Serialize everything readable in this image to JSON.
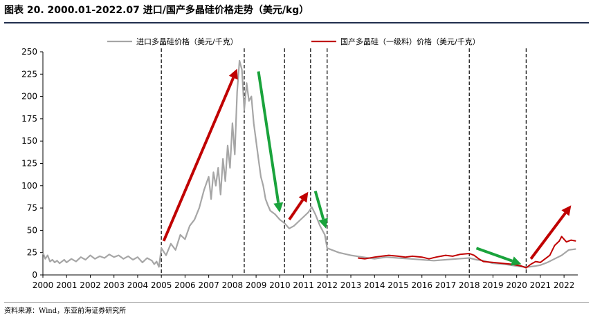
{
  "header": {
    "title": "图表 20. 2000.01-2022.07 进口/国产多晶硅价格走势（美元/kg）"
  },
  "footer": {
    "source": "资料来源：Wind，东亚前海证券研究所"
  },
  "colors": {
    "imported": "#a6a6a6",
    "domestic": "#c00000",
    "arrow_up": "#c00000",
    "arrow_down": "#1aa33c",
    "title_rule": "#1f2d4d"
  },
  "chart_data": {
    "type": "line",
    "title": "",
    "xlabel": "",
    "ylabel": "",
    "xlim": [
      2000.0,
      2022.58
    ],
    "ylim": [
      0,
      250
    ],
    "yticks": [
      0,
      25,
      50,
      75,
      100,
      125,
      150,
      175,
      200,
      225,
      250
    ],
    "xtick_labels": [
      "2000",
      "2001",
      "2002",
      "2003",
      "2004",
      "2005",
      "2006",
      "2007",
      "2008",
      "2009",
      "2010",
      "2011",
      "2012",
      "2013",
      "2014",
      "2015",
      "2016",
      "2017",
      "2018",
      "2019",
      "2020",
      "2021",
      "2022"
    ],
    "grid": false,
    "legend_placement": "top",
    "series": [
      {
        "name": "进口多晶硅价格（美元/千克）",
        "color": "#a6a6a6",
        "x": [
          2000.0,
          2000.1,
          2000.2,
          2000.3,
          2000.4,
          2000.5,
          2000.6,
          2000.7,
          2000.8,
          2000.9,
          2001.0,
          2001.2,
          2001.4,
          2001.6,
          2001.8,
          2002.0,
          2002.2,
          2002.4,
          2002.6,
          2002.8,
          2003.0,
          2003.2,
          2003.4,
          2003.6,
          2003.8,
          2004.0,
          2004.2,
          2004.4,
          2004.6,
          2004.7,
          2004.8,
          2004.9,
          2005.0,
          2005.2,
          2005.4,
          2005.6,
          2005.8,
          2006.0,
          2006.2,
          2006.4,
          2006.6,
          2006.8,
          2007.0,
          2007.1,
          2007.2,
          2007.3,
          2007.4,
          2007.5,
          2007.6,
          2007.7,
          2007.8,
          2007.9,
          2008.0,
          2008.1,
          2008.2,
          2008.3,
          2008.4,
          2008.5,
          2008.6,
          2008.7,
          2008.8,
          2008.9,
          2009.0,
          2009.1,
          2009.2,
          2009.3,
          2009.4,
          2009.5,
          2009.6,
          2009.8,
          2010.0,
          2010.2,
          2010.4,
          2010.6,
          2010.8,
          2011.0,
          2011.2,
          2011.35,
          2011.5,
          2011.7,
          2011.9,
          2012.0,
          2012.2,
          2012.5,
          2013.0,
          2013.5,
          2014.0,
          2014.5,
          2015.0,
          2015.5,
          2016.0,
          2016.5,
          2017.0,
          2017.5,
          2018.0,
          2018.3,
          2018.6,
          2019.0,
          2019.5,
          2020.0,
          2020.3,
          2020.5,
          2020.8,
          2021.0,
          2021.3,
          2021.6,
          2021.9,
          2022.2,
          2022.5
        ],
        "y": [
          25,
          18,
          22,
          15,
          17,
          14,
          16,
          13,
          15,
          17,
          14,
          18,
          15,
          20,
          17,
          22,
          18,
          21,
          19,
          23,
          20,
          22,
          18,
          21,
          17,
          20,
          14,
          19,
          16,
          12,
          15,
          9,
          30,
          22,
          35,
          28,
          45,
          40,
          55,
          62,
          75,
          95,
          110,
          85,
          115,
          100,
          120,
          90,
          130,
          105,
          145,
          120,
          170,
          135,
          205,
          240,
          230,
          185,
          215,
          195,
          200,
          170,
          150,
          130,
          110,
          100,
          85,
          78,
          72,
          68,
          62,
          58,
          52,
          55,
          60,
          65,
          70,
          76,
          68,
          55,
          45,
          30,
          28,
          25,
          22,
          20,
          18,
          20,
          19,
          18,
          17,
          16,
          17,
          18,
          19,
          17,
          16,
          13,
          12,
          10,
          9,
          9,
          10,
          11,
          14,
          18,
          22,
          28,
          29
        ]
      },
      {
        "name": "国产多晶硅（一级料）价格（美元/千克）",
        "color": "#c00000",
        "x": [
          2013.3,
          2013.6,
          2014.0,
          2014.3,
          2014.6,
          2015.0,
          2015.3,
          2015.6,
          2016.0,
          2016.3,
          2016.6,
          2017.0,
          2017.3,
          2017.6,
          2018.0,
          2018.2,
          2018.4,
          2018.6,
          2019.0,
          2019.4,
          2019.8,
          2020.2,
          2020.4,
          2020.6,
          2020.8,
          2021.0,
          2021.2,
          2021.4,
          2021.6,
          2021.8,
          2021.9,
          2022.0,
          2022.1,
          2022.3,
          2022.5
        ],
        "y": [
          19,
          18,
          20,
          21,
          22,
          21,
          20,
          21,
          20,
          18,
          20,
          22,
          21,
          23,
          24,
          22,
          18,
          15,
          14,
          13,
          12,
          10,
          8,
          12,
          15,
          14,
          18,
          22,
          33,
          38,
          43,
          40,
          37,
          39,
          38
        ]
      }
    ],
    "annotations": {
      "vertical_dashed_lines_at_x": [
        2005.0,
        2008.5,
        2010.2,
        2011.3,
        2012.0,
        2018.0,
        2020.4
      ],
      "arrows": [
        {
          "direction": "up",
          "color": "#c00000",
          "from": [
            2005.1,
            38
          ],
          "to": [
            2008.2,
            231
          ]
        },
        {
          "direction": "down",
          "color": "#1aa33c",
          "from": [
            2009.1,
            228
          ],
          "to": [
            2010.0,
            70
          ]
        },
        {
          "direction": "up",
          "color": "#c00000",
          "from": [
            2010.4,
            62
          ],
          "to": [
            2011.2,
            93
          ]
        },
        {
          "direction": "down",
          "color": "#1aa33c",
          "from": [
            2011.5,
            94
          ],
          "to": [
            2011.95,
            52
          ]
        },
        {
          "direction": "down",
          "color": "#1aa33c",
          "from": [
            2018.3,
            30
          ],
          "to": [
            2020.2,
            12
          ]
        },
        {
          "direction": "up",
          "color": "#c00000",
          "from": [
            2020.6,
            18
          ],
          "to": [
            2022.3,
            78
          ]
        }
      ]
    }
  }
}
